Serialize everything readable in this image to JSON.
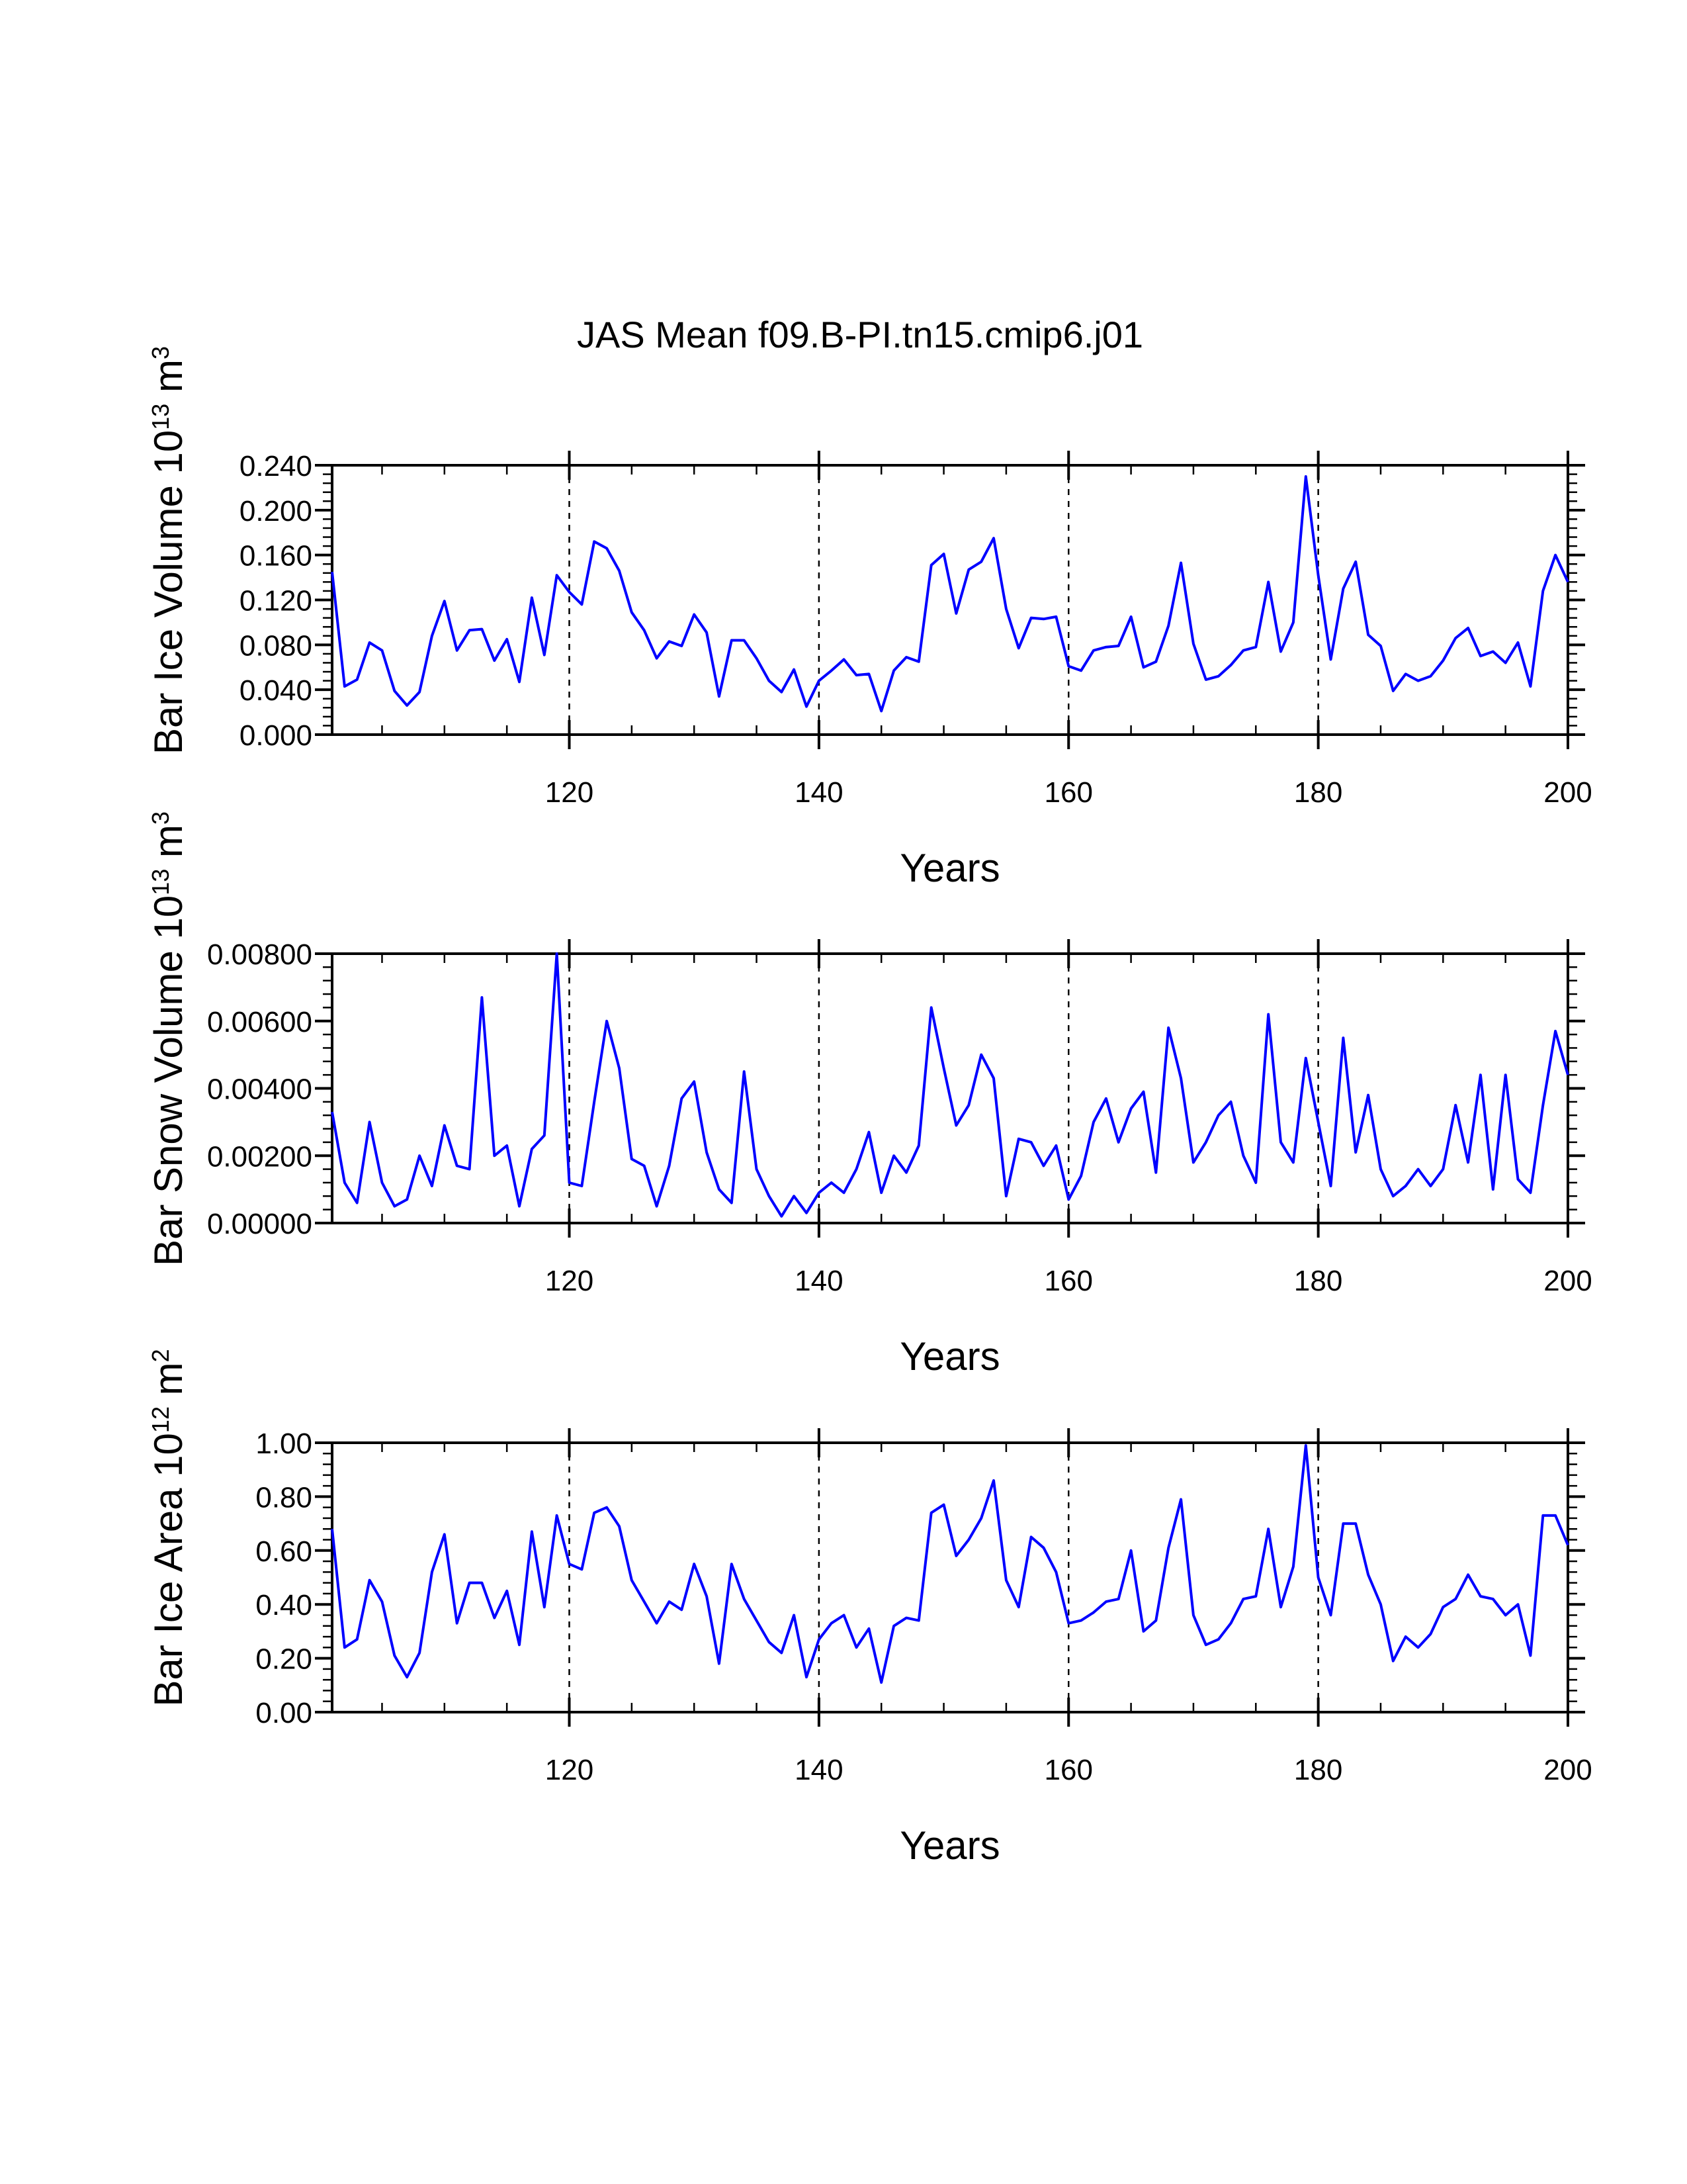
{
  "title": "JAS Mean f09.B-PI.tn15.cmip6.j01",
  "colors": {
    "line": "#0000ff",
    "axes": "#000000",
    "background": "#ffffff"
  },
  "chart_data": [
    {
      "type": "line",
      "name": "ice-volume",
      "ylabel": {
        "main": "Bar Ice Volume 10",
        "sup1": "13",
        "mid": " m",
        "sup2": "3"
      },
      "xlabel": "Years",
      "xlim": [
        101,
        200
      ],
      "ylim": [
        0,
        0.24
      ],
      "x_ticks": [
        120,
        140,
        160,
        180,
        200
      ],
      "x_tick_labels": [
        "120",
        "140",
        "160",
        "180",
        "200"
      ],
      "y_ticks": [
        0,
        0.04,
        0.08,
        0.12,
        0.16,
        0.2,
        0.24
      ],
      "y_tick_labels": [
        "0.000",
        "0.040",
        "0.080",
        "0.120",
        "0.160",
        "0.200",
        "0.240"
      ],
      "grid_x": [
        120,
        140,
        160,
        180
      ],
      "series": [
        {
          "name": "Bar Ice Volume",
          "x_start": 101,
          "values": [
            0.145,
            0.043,
            0.049,
            0.082,
            0.075,
            0.039,
            0.026,
            0.038,
            0.088,
            0.119,
            0.075,
            0.093,
            0.094,
            0.066,
            0.085,
            0.047,
            0.122,
            0.071,
            0.142,
            0.127,
            0.116,
            0.172,
            0.166,
            0.146,
            0.109,
            0.093,
            0.068,
            0.083,
            0.079,
            0.107,
            0.091,
            0.034,
            0.084,
            0.084,
            0.068,
            0.048,
            0.038,
            0.058,
            0.025,
            0.048,
            0.057,
            0.067,
            0.053,
            0.054,
            0.021,
            0.057,
            0.069,
            0.065,
            0.151,
            0.161,
            0.108,
            0.147,
            0.154,
            0.175,
            0.112,
            0.077,
            0.104,
            0.103,
            0.105,
            0.061,
            0.057,
            0.075,
            0.078,
            0.079,
            0.105,
            0.06,
            0.065,
            0.097,
            0.153,
            0.081,
            0.049,
            0.052,
            0.062,
            0.075,
            0.078,
            0.136,
            0.074,
            0.1,
            0.23,
            0.142,
            0.067,
            0.13,
            0.154,
            0.089,
            0.079,
            0.039,
            0.054,
            0.048,
            0.052,
            0.066,
            0.086,
            0.095,
            0.07,
            0.074,
            0.064,
            0.082,
            0.043,
            0.128,
            0.16,
            0.136
          ]
        }
      ]
    },
    {
      "type": "line",
      "name": "snow-volume",
      "ylabel": {
        "main": "Bar Snow Volume 10",
        "sup1": "13",
        "mid": " m",
        "sup2": "3"
      },
      "xlabel": "Years",
      "xlim": [
        101,
        200
      ],
      "ylim": [
        0,
        0.008
      ],
      "x_ticks": [
        120,
        140,
        160,
        180,
        200
      ],
      "x_tick_labels": [
        "120",
        "140",
        "160",
        "180",
        "200"
      ],
      "y_ticks": [
        0,
        0.002,
        0.004,
        0.006,
        0.008
      ],
      "y_tick_labels": [
        "0.00000",
        "0.00200",
        "0.00400",
        "0.00600",
        "0.00800"
      ],
      "grid_x": [
        120,
        140,
        160,
        180
      ],
      "series": [
        {
          "name": "Bar Snow Volume",
          "x_start": 101,
          "values": [
            0.0033,
            0.0012,
            0.0006,
            0.003,
            0.0012,
            0.0005,
            0.0007,
            0.002,
            0.0011,
            0.0029,
            0.0017,
            0.0016,
            0.0067,
            0.002,
            0.0023,
            0.0005,
            0.0022,
            0.0026,
            0.008,
            0.0012,
            0.0011,
            0.0036,
            0.006,
            0.0046,
            0.0019,
            0.0017,
            0.0005,
            0.0017,
            0.0037,
            0.0042,
            0.0021,
            0.001,
            0.0006,
            0.0045,
            0.0016,
            0.0008,
            0.0002,
            0.0008,
            0.0003,
            0.0009,
            0.0012,
            0.0009,
            0.0016,
            0.0027,
            0.0009,
            0.002,
            0.0015,
            0.0023,
            0.0064,
            0.0046,
            0.0029,
            0.0035,
            0.005,
            0.0043,
            0.0008,
            0.0025,
            0.0024,
            0.0017,
            0.0023,
            0.0007,
            0.0014,
            0.003,
            0.0037,
            0.0024,
            0.0034,
            0.0039,
            0.0015,
            0.0058,
            0.0043,
            0.0018,
            0.0024,
            0.0032,
            0.0036,
            0.002,
            0.0012,
            0.0062,
            0.0024,
            0.0018,
            0.0049,
            0.003,
            0.0011,
            0.0055,
            0.0021,
            0.0038,
            0.0016,
            0.0008,
            0.0011,
            0.0016,
            0.0011,
            0.0016,
            0.0035,
            0.0018,
            0.0044,
            0.001,
            0.0044,
            0.0013,
            0.0009,
            0.0035,
            0.0057,
            0.0044
          ]
        }
      ]
    },
    {
      "type": "line",
      "name": "ice-area",
      "ylabel": {
        "main": "Bar Ice Area 10",
        "sup1": "12",
        "mid": " m",
        "sup2": "2"
      },
      "xlabel": "Years",
      "xlim": [
        101,
        200
      ],
      "ylim": [
        0,
        1.0
      ],
      "x_ticks": [
        120,
        140,
        160,
        180,
        200
      ],
      "x_tick_labels": [
        "120",
        "140",
        "160",
        "180",
        "200"
      ],
      "y_ticks": [
        0,
        0.2,
        0.4,
        0.6,
        0.8,
        1.0
      ],
      "y_tick_labels": [
        "0.00",
        "0.20",
        "0.40",
        "0.60",
        "0.80",
        "1.00"
      ],
      "grid_x": [
        120,
        140,
        160,
        180
      ],
      "series": [
        {
          "name": "Bar Ice Area",
          "x_start": 101,
          "values": [
            0.68,
            0.24,
            0.27,
            0.49,
            0.41,
            0.21,
            0.13,
            0.22,
            0.52,
            0.66,
            0.33,
            0.48,
            0.48,
            0.35,
            0.45,
            0.25,
            0.67,
            0.39,
            0.73,
            0.55,
            0.53,
            0.74,
            0.76,
            0.69,
            0.49,
            0.41,
            0.33,
            0.41,
            0.38,
            0.55,
            0.43,
            0.18,
            0.55,
            0.42,
            0.34,
            0.26,
            0.22,
            0.36,
            0.13,
            0.27,
            0.33,
            0.36,
            0.24,
            0.31,
            0.11,
            0.32,
            0.35,
            0.34,
            0.74,
            0.77,
            0.58,
            0.64,
            0.72,
            0.86,
            0.49,
            0.39,
            0.65,
            0.61,
            0.52,
            0.33,
            0.34,
            0.37,
            0.41,
            0.42,
            0.6,
            0.3,
            0.34,
            0.61,
            0.79,
            0.36,
            0.25,
            0.27,
            0.33,
            0.42,
            0.43,
            0.68,
            0.39,
            0.54,
            0.99,
            0.5,
            0.36,
            0.7,
            0.7,
            0.51,
            0.4,
            0.19,
            0.28,
            0.24,
            0.29,
            0.39,
            0.42,
            0.51,
            0.43,
            0.42,
            0.36,
            0.4,
            0.21,
            0.73,
            0.73,
            0.62
          ]
        }
      ]
    }
  ]
}
